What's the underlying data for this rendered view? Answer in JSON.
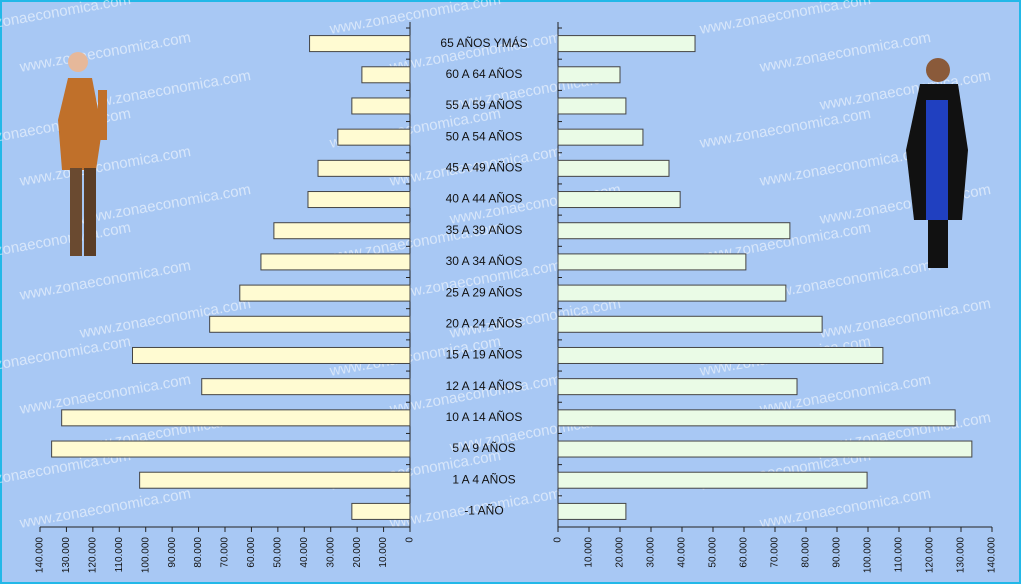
{
  "chart_data": {
    "type": "pyramid",
    "watermark": "www.zonaeconomica.com",
    "categories": [
      "65 AÑOS YMÁS",
      "60 A 64 AÑOS",
      "55 A 59 AÑOS",
      "50 A 54 AÑOS",
      "45 A 49 AÑOS",
      "40 A 44 AÑOS",
      "35 A 39 AÑOS",
      "30 A 34 AÑOS",
      "25 A 29 AÑOS",
      "20 A 24 AÑOS",
      "15 A 19 AÑOS",
      "12 A 14 AÑOS",
      "10 A 14 AÑOS",
      "5 A 9 AÑOS",
      "1 A 4 AÑOS",
      "-1 AÑO"
    ],
    "series": [
      {
        "color": "#fffbd2",
        "values": [
          38000,
          18200,
          22000,
          27300,
          34800,
          38600,
          51500,
          56400,
          64400,
          75800,
          105000,
          78800,
          131800,
          135600,
          102300,
          22000
        ]
      },
      {
        "color": "#eafbe6",
        "values": [
          44200,
          20000,
          21900,
          27400,
          35800,
          39400,
          74800,
          60600,
          73500,
          85200,
          104800,
          77100,
          128100,
          133500,
          99700,
          21900
        ]
      }
    ],
    "xlim": [
      0,
      140000
    ],
    "xticks": [
      0,
      {
        "value": 10000,
        "label": "10.000"
      },
      {
        "value": 20000,
        "label": "20.000"
      },
      {
        "value": 30000,
        "label": "30.000"
      },
      {
        "value": 40000,
        "label": "40.000"
      },
      {
        "value": 50000,
        "label": "50.000"
      },
      {
        "value": 60000,
        "label": "60.000"
      },
      {
        "value": 70000,
        "label": "70.000"
      },
      {
        "value": 80000,
        "label": "80.000"
      },
      {
        "value": 90000,
        "label": "90.000"
      },
      {
        "value": 100000,
        "label": "100.000"
      },
      {
        "value": 110000,
        "label": "110.000"
      },
      {
        "value": 120000,
        "label": "120.000"
      },
      {
        "value": 130000,
        "label": "130.000"
      },
      {
        "value": 140000,
        "label": "140.000"
      }
    ]
  }
}
